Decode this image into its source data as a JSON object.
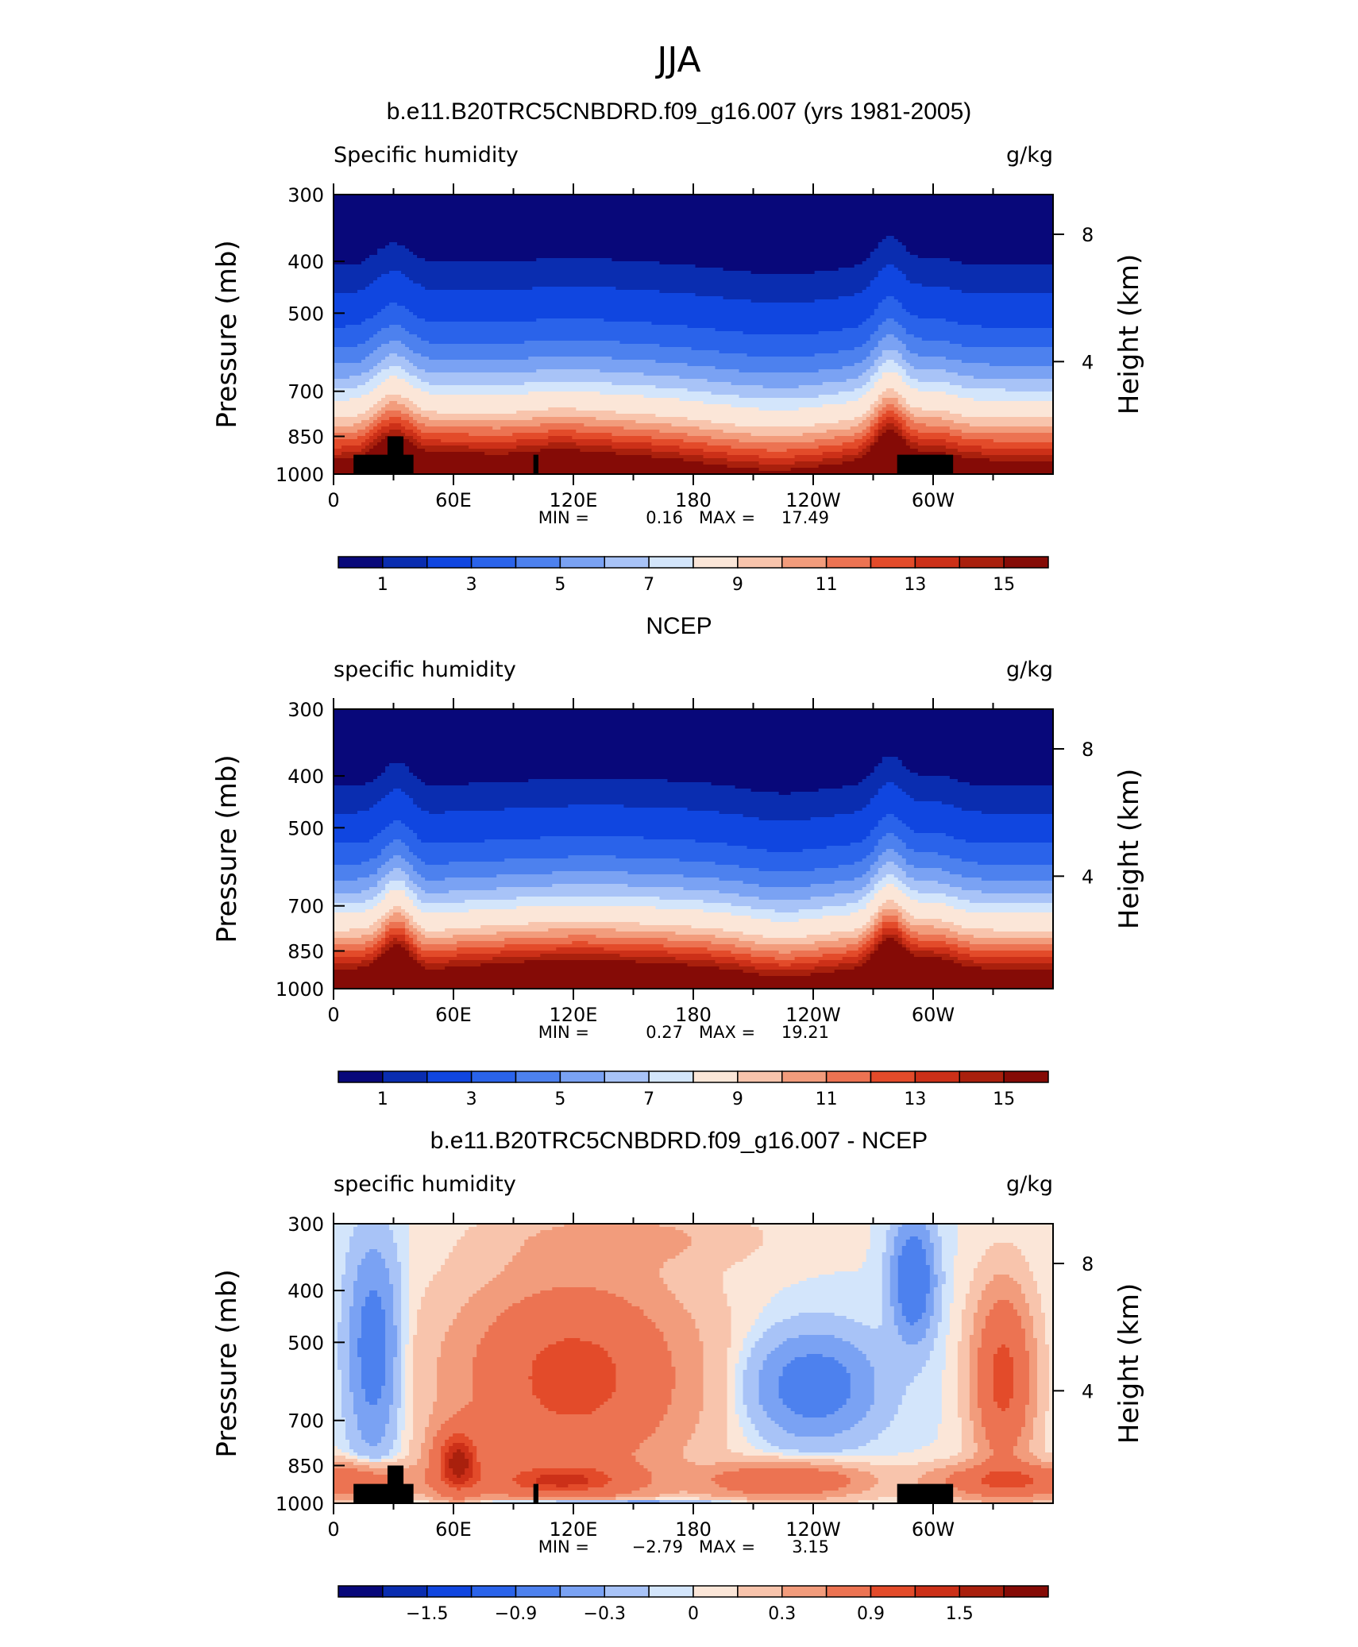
{
  "figure_title": "JJA",
  "shared": {
    "ylabel_left": "Pressure (mb)",
    "ylabel_right": "Height (km)",
    "units": "g/kg",
    "pressure_ticks": [
      "300",
      "400",
      "500",
      "700",
      "850",
      "1000"
    ],
    "height_ticks": [
      "8",
      "4"
    ],
    "lon_ticks": [
      "0",
      "60E",
      "120E",
      "180",
      "120W",
      "60W"
    ]
  },
  "colors": {
    "palette": [
      "#08087a",
      "#0a2db0",
      "#1046e0",
      "#2a63ea",
      "#4d81ee",
      "#7aa2f3",
      "#a8c3f7",
      "#d3e5fb",
      "#fbe6d8",
      "#f8c4ac",
      "#f29c7c",
      "#ec7352",
      "#e34b2a",
      "#cc3018",
      "#a9200d",
      "#850b06"
    ],
    "topography": "#000000"
  },
  "chart_data": [
    {
      "type": "heatmap",
      "title": "b.e11.B20TRC5CNBDRD.f09_g16.007 (yrs 1981-2005)",
      "variable": "Specific humidity",
      "units": "g/kg",
      "ylabel": "Pressure (mb)",
      "y2label": "Height (km)",
      "min": "0.16",
      "max": "17.49",
      "colorbar_labels": [
        "1",
        "3",
        "5",
        "7",
        "9",
        "11",
        "13",
        "15"
      ],
      "contour_levels": [
        0.5,
        1,
        2,
        3,
        4,
        5,
        6,
        7,
        8,
        9,
        10,
        11,
        12,
        13,
        14,
        15
      ],
      "topography": true
    },
    {
      "type": "heatmap",
      "title": "NCEP",
      "variable": "specific humidity",
      "units": "g/kg",
      "ylabel": "Pressure (mb)",
      "y2label": "Height (km)",
      "min": "0.27",
      "max": "19.21",
      "colorbar_labels": [
        "1",
        "3",
        "5",
        "7",
        "9",
        "11",
        "13",
        "15"
      ],
      "contour_levels": [
        0.5,
        1,
        2,
        3,
        4,
        5,
        6,
        7,
        8,
        9,
        10,
        11,
        12,
        13,
        14,
        15
      ],
      "topography": false
    },
    {
      "type": "heatmap",
      "title": "b.e11.B20TRC5CNBDRD.f09_g16.007 - NCEP",
      "variable": "specific humidity",
      "units": "g/kg",
      "ylabel": "Pressure (mb)",
      "y2label": "Height (km)",
      "min": "−2.79",
      "max": "3.15",
      "colorbar_labels": [
        "−1.5",
        "−0.9",
        "−0.3",
        "0",
        "0.3",
        "0.9",
        "1.5"
      ],
      "contour_levels": [
        -2.1,
        -1.8,
        -1.5,
        -1.2,
        -0.9,
        -0.6,
        -0.3,
        -0.1,
        0,
        0.1,
        0.3,
        0.6,
        0.9,
        1.2,
        1.5,
        1.8,
        2.1
      ],
      "topography": true
    }
  ]
}
